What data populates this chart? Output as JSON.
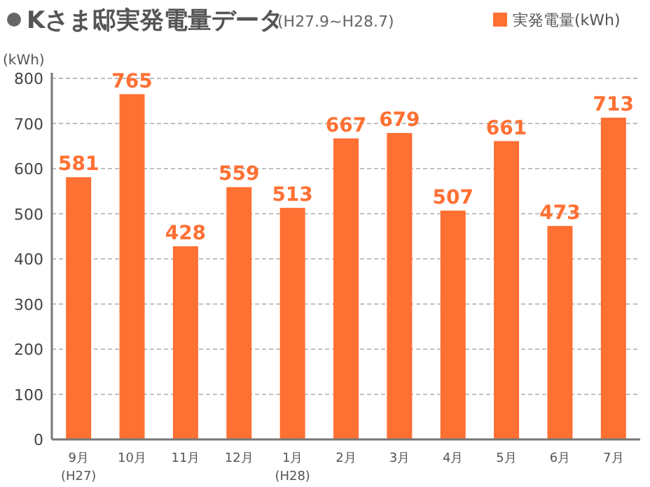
{
  "chart_data": {
    "type": "bar",
    "title": "Kさま邸実発電量データ",
    "subtitle": "(H27.9~H28.7)",
    "ylabel": "(kWh)",
    "categories": [
      "9月\n(H27)",
      "10月",
      "11月",
      "12月",
      "1月\n(H28)",
      "2月",
      "3月",
      "4月",
      "5月",
      "6月",
      "7月"
    ],
    "series": [
      {
        "name": "実発電量(kWh)",
        "color": "#ff7033",
        "values": [
          581,
          765,
          428,
          559,
          513,
          667,
          679,
          507,
          661,
          473,
          713
        ]
      }
    ],
    "ylim": [
      0,
      800
    ],
    "yticks": [
      0,
      100,
      200,
      300,
      400,
      500,
      600,
      700,
      800
    ],
    "grid": "y",
    "legend": "top right",
    "data_labels": true
  }
}
